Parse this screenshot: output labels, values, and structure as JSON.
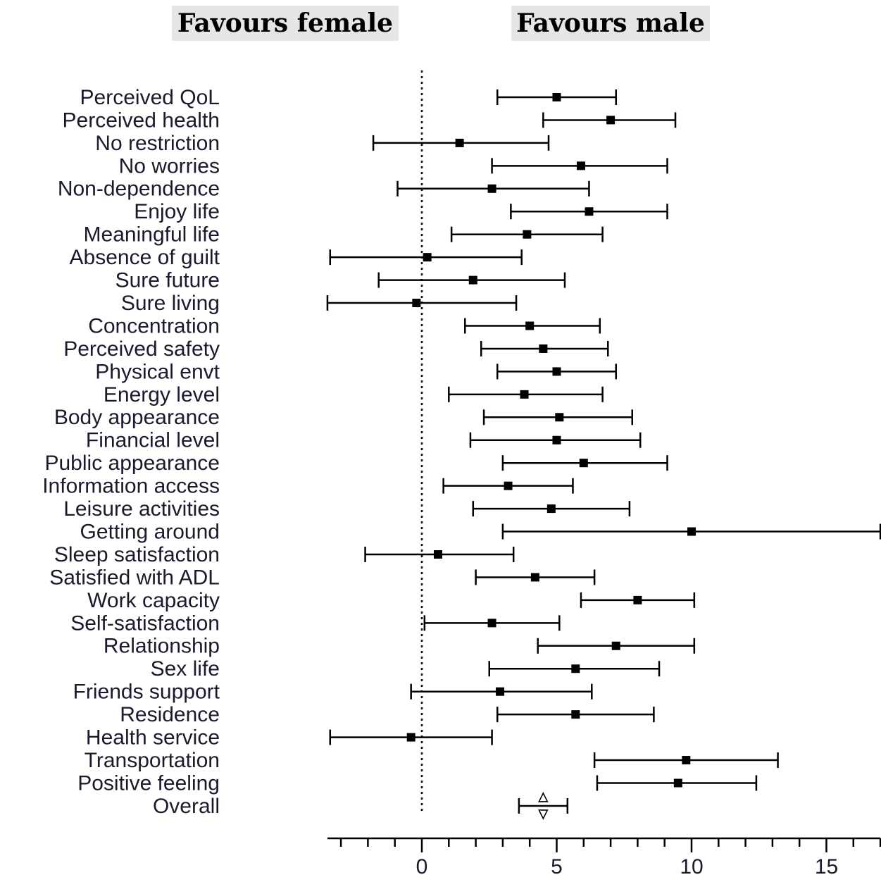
{
  "header": {
    "left_label": "Favours female",
    "right_label": "Favours male"
  },
  "colors": {
    "marker": "#000000",
    "label_text": "#1a1a2e",
    "header_background": "#e6e6e6"
  },
  "chart_data": {
    "type": "forest",
    "xlim": [
      -3.5,
      17
    ],
    "xticks": [
      0,
      5,
      10,
      15
    ],
    "minor_tick_step": 1,
    "reference_line_x": 0,
    "reference_line_style": "dotted",
    "grid": false,
    "rows": [
      {
        "label": "Perceived QoL",
        "estimate": 5.0,
        "lower": 2.8,
        "upper": 7.2
      },
      {
        "label": "Perceived health",
        "estimate": 7.0,
        "lower": 4.5,
        "upper": 9.4
      },
      {
        "label": "No restriction",
        "estimate": 1.4,
        "lower": -1.8,
        "upper": 4.7
      },
      {
        "label": "No worries",
        "estimate": 5.9,
        "lower": 2.6,
        "upper": 9.1
      },
      {
        "label": "Non-dependence",
        "estimate": 2.6,
        "lower": -0.9,
        "upper": 6.2
      },
      {
        "label": "Enjoy life",
        "estimate": 6.2,
        "lower": 3.3,
        "upper": 9.1
      },
      {
        "label": "Meaningful life",
        "estimate": 3.9,
        "lower": 1.1,
        "upper": 6.7
      },
      {
        "label": "Absence of guilt",
        "estimate": 0.2,
        "lower": -3.4,
        "upper": 3.7
      },
      {
        "label": "Sure future",
        "estimate": 1.9,
        "lower": -1.6,
        "upper": 5.3
      },
      {
        "label": "Sure living",
        "estimate": -0.2,
        "lower": -3.5,
        "upper": 3.5
      },
      {
        "label": "Concentration",
        "estimate": 4.0,
        "lower": 1.6,
        "upper": 6.6
      },
      {
        "label": "Perceived safety",
        "estimate": 4.5,
        "lower": 2.2,
        "upper": 6.9
      },
      {
        "label": "Physical envt",
        "estimate": 5.0,
        "lower": 2.8,
        "upper": 7.2
      },
      {
        "label": "Energy level",
        "estimate": 3.8,
        "lower": 1.0,
        "upper": 6.7
      },
      {
        "label": "Body appearance",
        "estimate": 5.1,
        "lower": 2.3,
        "upper": 7.8
      },
      {
        "label": "Financial level",
        "estimate": 5.0,
        "lower": 1.8,
        "upper": 8.1
      },
      {
        "label": "Public appearance",
        "estimate": 6.0,
        "lower": 3.0,
        "upper": 9.1
      },
      {
        "label": "Information access",
        "estimate": 3.2,
        "lower": 0.8,
        "upper": 5.6
      },
      {
        "label": "Leisure activities",
        "estimate": 4.8,
        "lower": 1.9,
        "upper": 7.7
      },
      {
        "label": "Getting around",
        "estimate": 10.0,
        "lower": 3.0,
        "upper": 17.0
      },
      {
        "label": "Sleep satisfaction",
        "estimate": 0.6,
        "lower": -2.1,
        "upper": 3.4
      },
      {
        "label": "Satisfied with ADL",
        "estimate": 4.2,
        "lower": 2.0,
        "upper": 6.4
      },
      {
        "label": "Work capacity",
        "estimate": 8.0,
        "lower": 5.9,
        "upper": 10.1
      },
      {
        "label": "Self-satisfaction",
        "estimate": 2.6,
        "lower": 0.1,
        "upper": 5.1
      },
      {
        "label": "Relationship",
        "estimate": 7.2,
        "lower": 4.3,
        "upper": 10.1
      },
      {
        "label": "Sex life",
        "estimate": 5.7,
        "lower": 2.5,
        "upper": 8.8
      },
      {
        "label": "Friends support",
        "estimate": 2.9,
        "lower": -0.4,
        "upper": 6.3
      },
      {
        "label": "Residence",
        "estimate": 5.7,
        "lower": 2.8,
        "upper": 8.6
      },
      {
        "label": "Health service",
        "estimate": -0.4,
        "lower": -3.4,
        "upper": 2.6
      },
      {
        "label": "Transportation",
        "estimate": 9.8,
        "lower": 6.4,
        "upper": 13.2
      },
      {
        "label": "Positive feeling",
        "estimate": 9.5,
        "lower": 6.5,
        "upper": 12.4
      },
      {
        "label": "Overall",
        "estimate": 4.5,
        "lower": 3.6,
        "upper": 5.4,
        "marker": "diamond"
      }
    ]
  }
}
